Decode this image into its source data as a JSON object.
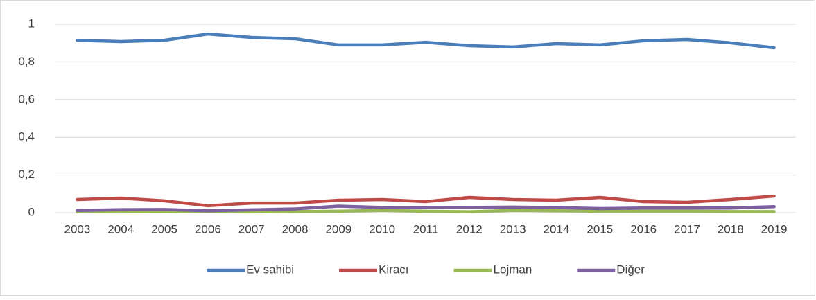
{
  "chart_data": {
    "type": "line",
    "categories": [
      "2003",
      "2004",
      "2005",
      "2006",
      "2007",
      "2008",
      "2009",
      "2010",
      "2011",
      "2012",
      "2013",
      "2014",
      "2015",
      "2016",
      "2017",
      "2018",
      "2019"
    ],
    "series": [
      {
        "name": "Ev sahibi",
        "color": "#4a7ebb",
        "values": [
          0.915,
          0.908,
          0.915,
          0.948,
          0.93,
          0.923,
          0.89,
          0.89,
          0.904,
          0.886,
          0.879,
          0.897,
          0.89,
          0.912,
          0.919,
          0.901,
          0.875
        ]
      },
      {
        "name": "Kiracı",
        "color": "#be4b48",
        "values": [
          0.07,
          0.077,
          0.063,
          0.037,
          0.051,
          0.051,
          0.066,
          0.07,
          0.059,
          0.081,
          0.07,
          0.066,
          0.081,
          0.059,
          0.055,
          0.07,
          0.088
        ]
      },
      {
        "name": "Lojman",
        "color": "#98b954",
        "values": [
          0.005,
          0.004,
          0.006,
          0.005,
          0.004,
          0.006,
          0.008,
          0.012,
          0.008,
          0.005,
          0.012,
          0.01,
          0.008,
          0.008,
          0.008,
          0.006,
          0.006
        ]
      },
      {
        "name": "Diğer",
        "color": "#7d60a0",
        "values": [
          0.012,
          0.016,
          0.017,
          0.01,
          0.015,
          0.02,
          0.035,
          0.028,
          0.028,
          0.028,
          0.03,
          0.027,
          0.022,
          0.025,
          0.025,
          0.025,
          0.032
        ]
      }
    ],
    "ylim": [
      0,
      1
    ],
    "yticks": [
      0,
      {
        "value": 0.2,
        "label": "0,2"
      },
      {
        "value": 0.4,
        "label": "0,4"
      },
      {
        "value": 0.6,
        "label": "0,6"
      },
      {
        "value": 0.8,
        "label": "0,8"
      },
      1
    ],
    "grid": true,
    "legend": "bottom"
  }
}
